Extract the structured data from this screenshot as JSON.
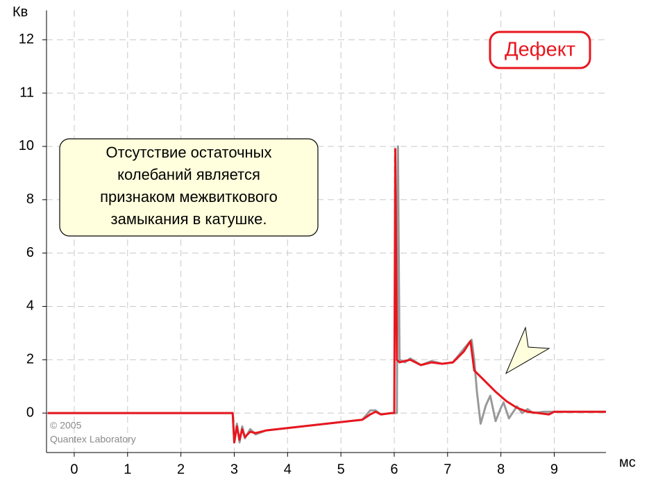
{
  "chart_data": {
    "type": "line",
    "y_label": "Кв",
    "x_label": "мс",
    "badge": "Дефект",
    "note": [
      "Отсутствие остаточных",
      "колебаний является",
      "признаком межвиткового",
      "замыкания в катушке."
    ],
    "copyright": [
      "© 2005",
      "Quantex Laboratory"
    ],
    "xlim": [
      -0.52,
      9.97
    ],
    "xticks": [
      0,
      1,
      2,
      3,
      4,
      5,
      6,
      7,
      8,
      9
    ],
    "ylim": [
      -1.48,
      12.55
    ],
    "yticks": [
      0,
      2,
      4,
      6,
      8,
      10,
      11,
      12
    ],
    "grid": true,
    "series": [
      {
        "color": "#999999",
        "x": [
          -0.5,
          2.97,
          3.0,
          3.05,
          3.1,
          3.15,
          3.2,
          3.3,
          3.4,
          3.6,
          5.4,
          5.55,
          5.65,
          5.75,
          5.95,
          6.05,
          6.07,
          6.1,
          6.2,
          6.3,
          6.5,
          6.7,
          6.9,
          7.1,
          7.3,
          7.45,
          7.5,
          7.55,
          7.62,
          7.72,
          7.8,
          7.9,
          8.0,
          8.05,
          8.15,
          8.3,
          8.4,
          8.5,
          8.6,
          8.8,
          9,
          10
        ],
        "values": [
          0,
          0,
          -1.1,
          -0.4,
          -1.1,
          -0.5,
          -0.95,
          -0.6,
          -0.8,
          -0.65,
          -0.25,
          0.1,
          0.1,
          -0.05,
          0,
          0,
          10,
          2.0,
          1.9,
          2.05,
          1.8,
          1.95,
          1.85,
          1.9,
          2.4,
          2.75,
          2.0,
          0.8,
          -0.4,
          0.3,
          0.65,
          -0.3,
          0.2,
          0.4,
          -0.2,
          0.25,
          0.0,
          0.15,
          0.0,
          0.05,
          0.05,
          0.05
        ]
      },
      {
        "color": "#e8161e",
        "x": [
          -0.5,
          2.97,
          3.0,
          3.05,
          3.1,
          3.15,
          3.2,
          3.3,
          3.4,
          3.6,
          5.4,
          5.55,
          5.65,
          5.75,
          5.95,
          6.0,
          6.02,
          6.05,
          6.1,
          6.3,
          6.5,
          6.7,
          6.9,
          7.1,
          7.3,
          7.43,
          7.5,
          7.7,
          7.9,
          8.1,
          8.3,
          8.5,
          8.7,
          8.9,
          9.0,
          10
        ],
        "values": [
          0,
          0,
          -1.1,
          -0.5,
          -1.0,
          -0.6,
          -0.9,
          -0.7,
          -0.75,
          -0.65,
          -0.25,
          -0.05,
          0.05,
          -0.05,
          0,
          0,
          9.9,
          2.0,
          1.9,
          2.0,
          1.8,
          1.9,
          1.85,
          1.9,
          2.3,
          2.7,
          1.6,
          1.2,
          0.8,
          0.45,
          0.2,
          0.05,
          0,
          -0.05,
          0.05,
          0.05
        ]
      }
    ]
  }
}
